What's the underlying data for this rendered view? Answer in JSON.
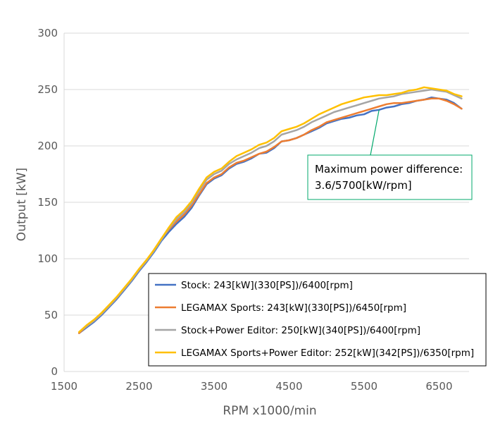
{
  "chart_data": {
    "type": "line",
    "xlabel": "RPM x1000/min",
    "ylabel": "Output [kW]",
    "xlim": [
      1500,
      6900
    ],
    "ylim": [
      0,
      300
    ],
    "xticks": [
      1500,
      2500,
      3500,
      4500,
      5500,
      6500
    ],
    "yticks": [
      0,
      50,
      100,
      150,
      200,
      250,
      300
    ],
    "grid": "horizontal",
    "legend_position": "bottom-right",
    "annotation": {
      "lines": [
        "Maximum power difference:",
        "3.6/5700[kW/rpm]"
      ],
      "border_color": "#00A86B",
      "points_to": [
        5700,
        232
      ]
    },
    "x": [
      1700,
      1800,
      1900,
      2000,
      2100,
      2200,
      2300,
      2400,
      2500,
      2600,
      2700,
      2800,
      2900,
      3000,
      3100,
      3200,
      3300,
      3400,
      3500,
      3600,
      3700,
      3800,
      3900,
      4000,
      4100,
      4200,
      4300,
      4400,
      4500,
      4600,
      4700,
      4800,
      4900,
      5000,
      5100,
      5200,
      5300,
      5400,
      5500,
      5600,
      5700,
      5800,
      5900,
      6000,
      6100,
      6200,
      6300,
      6400,
      6500,
      6600,
      6700,
      6800
    ],
    "series": [
      {
        "name": "Stock: 243[kW](330[PS])/6400[rpm]",
        "color": "#4472C4",
        "values": [
          34,
          39,
          44,
          50,
          57,
          64,
          72,
          80,
          89,
          97,
          106,
          116,
          124,
          131,
          137,
          145,
          156,
          166,
          171,
          174,
          180,
          184,
          186,
          189,
          193,
          194,
          198,
          204,
          205,
          207,
          210,
          213,
          216,
          220,
          222,
          224,
          225,
          227,
          228,
          231,
          232,
          234,
          235,
          237,
          238,
          240,
          241,
          243,
          242,
          241,
          238,
          233
        ]
      },
      {
        "name": "LEGAMAX Sports: 243[kW](330[PS])/6450[rpm]",
        "color": "#ED7D31",
        "values": [
          34,
          40,
          45,
          51,
          58,
          65,
          73,
          81,
          90,
          98,
          108,
          118,
          126,
          133,
          139,
          147,
          157,
          167,
          172,
          175,
          181,
          185,
          187,
          190,
          193,
          195,
          199,
          204,
          205,
          207,
          210,
          214,
          217,
          221,
          223,
          225,
          227,
          229,
          231,
          233,
          235,
          237,
          238,
          238,
          239,
          240,
          241,
          242,
          242,
          240,
          237,
          233
        ]
      },
      {
        "name": "Stock+Power Editor: 250[kW](340[PS])/6400[rpm]",
        "color": "#A5A5A5",
        "values": [
          35,
          40,
          45,
          51,
          58,
          65,
          73,
          81,
          90,
          98,
          107,
          117,
          127,
          135,
          141,
          149,
          160,
          170,
          175,
          178,
          184,
          188,
          191,
          194,
          198,
          200,
          204,
          210,
          212,
          214,
          217,
          221,
          224,
          227,
          230,
          232,
          234,
          236,
          238,
          240,
          242,
          243,
          244,
          246,
          247,
          248,
          249,
          250,
          249,
          248,
          245,
          242
        ]
      },
      {
        "name": "LEGAMAX Sports+Power Editor: 252[kW](342[PS])/6350[rpm]",
        "color": "#FFC000",
        "values": [
          35,
          41,
          46,
          52,
          59,
          66,
          74,
          82,
          91,
          99,
          108,
          118,
          128,
          137,
          143,
          151,
          162,
          172,
          177,
          180,
          186,
          191,
          194,
          197,
          201,
          203,
          207,
          213,
          215,
          217,
          220,
          224,
          228,
          231,
          234,
          237,
          239,
          241,
          243,
          244,
          245,
          245,
          246,
          247,
          249,
          250,
          252,
          251,
          250,
          249,
          246,
          244
        ]
      }
    ]
  }
}
